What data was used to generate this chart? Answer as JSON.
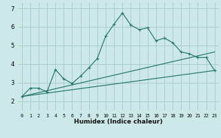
{
  "xlabel": "Humidex (Indice chaleur)",
  "ylabel": "",
  "background_color": "#cce8e8",
  "grid_color": "#aacccc",
  "line_color": "#2a7a6a",
  "xlim": [
    -0.5,
    23.5
  ],
  "ylim": [
    1.5,
    7.3
  ],
  "yticks": [
    2,
    3,
    4,
    5,
    6,
    7
  ],
  "xticks": [
    0,
    1,
    2,
    3,
    4,
    5,
    6,
    7,
    8,
    9,
    10,
    11,
    12,
    13,
    14,
    15,
    16,
    17,
    18,
    19,
    20,
    21,
    22,
    23
  ],
  "series1_x": [
    0,
    1,
    2,
    3,
    4,
    5,
    6,
    7,
    8,
    9,
    10,
    11,
    12,
    13,
    14,
    15,
    16,
    17,
    18,
    19,
    20,
    21,
    22,
    23
  ],
  "series1_y": [
    2.25,
    2.7,
    2.7,
    2.5,
    3.7,
    3.2,
    2.95,
    3.35,
    3.8,
    4.3,
    5.5,
    6.15,
    6.75,
    6.1,
    5.85,
    5.95,
    5.25,
    5.4,
    5.15,
    4.65,
    4.55,
    4.35,
    4.35,
    3.65
  ],
  "series2_x": [
    0,
    23
  ],
  "series2_y": [
    2.25,
    4.65
  ],
  "series3_x": [
    0,
    23
  ],
  "series3_y": [
    2.25,
    3.65
  ]
}
